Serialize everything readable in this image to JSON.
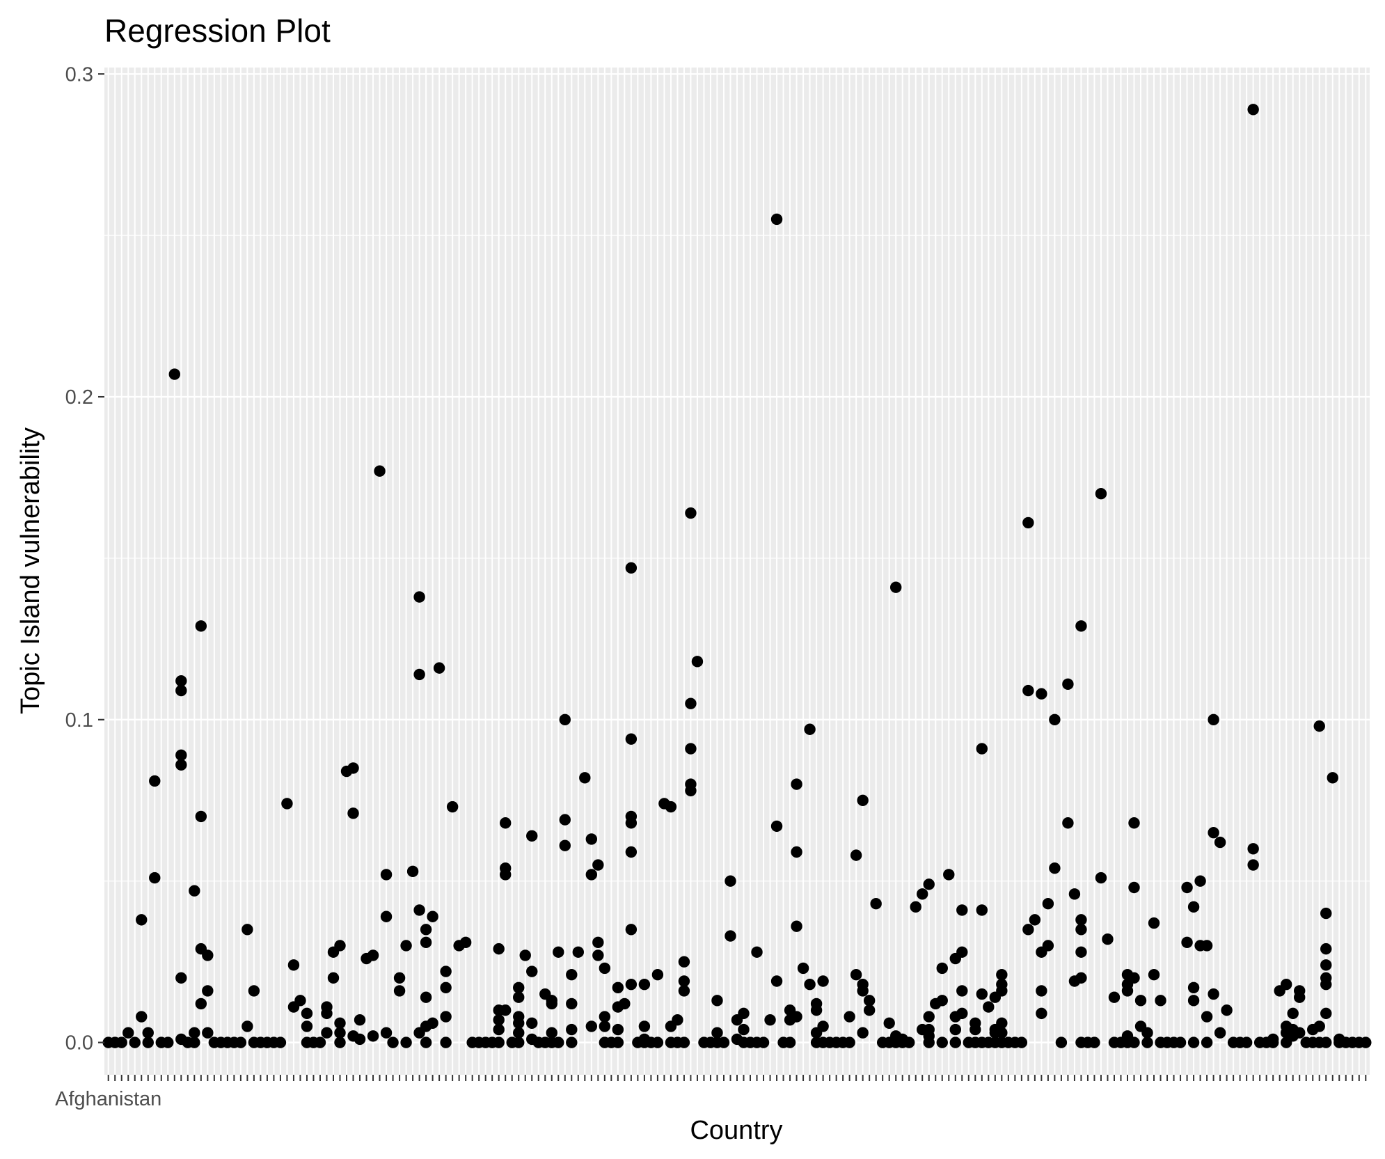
{
  "chart_data": {
    "type": "scatter",
    "title": "Regression Plot",
    "xlabel": "Country",
    "ylabel": "Topic Island vulnerability",
    "ylim": [
      -0.01,
      0.302
    ],
    "yticks": [
      0.0,
      0.1,
      0.2,
      0.3
    ],
    "ytick_labels": [
      "0.0",
      "0.1",
      "0.2",
      "0.3"
    ],
    "n_categories": 191,
    "x_tick_labels_visible": [
      "Afghanistan"
    ],
    "grid": true,
    "legend": "none",
    "point_color": "#000000",
    "panel_background": "#ebebeb",
    "points": [
      [
        1,
        0
      ],
      [
        2,
        0
      ],
      [
        3,
        0
      ],
      [
        4,
        0.003
      ],
      [
        5,
        0
      ],
      [
        6,
        0.038
      ],
      [
        6,
        0.008
      ],
      [
        7,
        0
      ],
      [
        7,
        0.003
      ],
      [
        8,
        0.081
      ],
      [
        8,
        0.051
      ],
      [
        9,
        0
      ],
      [
        10,
        0
      ],
      [
        11,
        0.207
      ],
      [
        12,
        0.112
      ],
      [
        12,
        0.109
      ],
      [
        12,
        0.089
      ],
      [
        12,
        0.086
      ],
      [
        12,
        0.02
      ],
      [
        12,
        0.001
      ],
      [
        13,
        0
      ],
      [
        14,
        0.047
      ],
      [
        14,
        0.003
      ],
      [
        14,
        0
      ],
      [
        15,
        0.129
      ],
      [
        15,
        0.07
      ],
      [
        15,
        0.029
      ],
      [
        15,
        0.012
      ],
      [
        16,
        0.027
      ],
      [
        16,
        0.016
      ],
      [
        16,
        0.003
      ],
      [
        17,
        0
      ],
      [
        18,
        0
      ],
      [
        19,
        0
      ],
      [
        20,
        0
      ],
      [
        21,
        0
      ],
      [
        22,
        0.035
      ],
      [
        22,
        0.005
      ],
      [
        23,
        0.016
      ],
      [
        23,
        0
      ],
      [
        24,
        0
      ],
      [
        25,
        0
      ],
      [
        26,
        0
      ],
      [
        27,
        0
      ],
      [
        28,
        0.074
      ],
      [
        29,
        0.024
      ],
      [
        29,
        0.011
      ],
      [
        30,
        0.013
      ],
      [
        31,
        0.009
      ],
      [
        31,
        0.005
      ],
      [
        31,
        0
      ],
      [
        32,
        0
      ],
      [
        33,
        0
      ],
      [
        34,
        0.011
      ],
      [
        34,
        0.009
      ],
      [
        34,
        0.003
      ],
      [
        35,
        0.028
      ],
      [
        35,
        0.02
      ],
      [
        36,
        0.03
      ],
      [
        36,
        0.006
      ],
      [
        36,
        0.003
      ],
      [
        36,
        0
      ],
      [
        37,
        0.084
      ],
      [
        38,
        0.085
      ],
      [
        38,
        0.071
      ],
      [
        38,
        0.002
      ],
      [
        39,
        0.007
      ],
      [
        39,
        0.001
      ],
      [
        40,
        0.026
      ],
      [
        41,
        0.027
      ],
      [
        41,
        0.002
      ],
      [
        42,
        0.177
      ],
      [
        43,
        0.052
      ],
      [
        43,
        0.039
      ],
      [
        43,
        0.003
      ],
      [
        44,
        0
      ],
      [
        45,
        0.02
      ],
      [
        45,
        0.016
      ],
      [
        46,
        0.03
      ],
      [
        46,
        0
      ],
      [
        47,
        0.053
      ],
      [
        48,
        0.138
      ],
      [
        48,
        0.114
      ],
      [
        48,
        0.041
      ],
      [
        48,
        0.003
      ],
      [
        49,
        0.035
      ],
      [
        49,
        0.031
      ],
      [
        49,
        0.014
      ],
      [
        49,
        0.005
      ],
      [
        49,
        0
      ],
      [
        50,
        0.039
      ],
      [
        50,
        0.006
      ],
      [
        51,
        0.116
      ],
      [
        52,
        0.022
      ],
      [
        52,
        0.017
      ],
      [
        52,
        0.008
      ],
      [
        52,
        0
      ],
      [
        53,
        0.073
      ],
      [
        54,
        0.03
      ],
      [
        55,
        0.031
      ],
      [
        56,
        0
      ],
      [
        57,
        0
      ],
      [
        58,
        0
      ],
      [
        59,
        0
      ],
      [
        60,
        0.029
      ],
      [
        60,
        0.01
      ],
      [
        60,
        0.007
      ],
      [
        60,
        0.004
      ],
      [
        60,
        0
      ],
      [
        61,
        0.068
      ],
      [
        61,
        0.054
      ],
      [
        61,
        0.052
      ],
      [
        61,
        0.01
      ],
      [
        62,
        0
      ],
      [
        63,
        0.017
      ],
      [
        63,
        0.014
      ],
      [
        63,
        0.008
      ],
      [
        63,
        0.006
      ],
      [
        63,
        0.003
      ],
      [
        63,
        0
      ],
      [
        64,
        0.027
      ],
      [
        65,
        0.064
      ],
      [
        65,
        0.022
      ],
      [
        65,
        0.006
      ],
      [
        65,
        0.001
      ],
      [
        66,
        0
      ],
      [
        67,
        0.015
      ],
      [
        67,
        0
      ],
      [
        68,
        0.013
      ],
      [
        68,
        0.012
      ],
      [
        68,
        0.003
      ],
      [
        68,
        0
      ],
      [
        69,
        0.028
      ],
      [
        69,
        0
      ],
      [
        70,
        0.1
      ],
      [
        70,
        0.069
      ],
      [
        70,
        0.061
      ],
      [
        71,
        0.021
      ],
      [
        71,
        0.012
      ],
      [
        71,
        0.004
      ],
      [
        71,
        0
      ],
      [
        72,
        0.028
      ],
      [
        73,
        0.082
      ],
      [
        74,
        0.063
      ],
      [
        74,
        0.052
      ],
      [
        74,
        0.005
      ],
      [
        75,
        0.055
      ],
      [
        75,
        0.031
      ],
      [
        75,
        0.027
      ],
      [
        76,
        0.023
      ],
      [
        76,
        0.008
      ],
      [
        76,
        0.005
      ],
      [
        76,
        0
      ],
      [
        77,
        0
      ],
      [
        78,
        0.017
      ],
      [
        78,
        0.011
      ],
      [
        78,
        0.004
      ],
      [
        78,
        0
      ],
      [
        79,
        0.012
      ],
      [
        80,
        0.147
      ],
      [
        80,
        0.094
      ],
      [
        80,
        0.07
      ],
      [
        80,
        0.068
      ],
      [
        80,
        0.059
      ],
      [
        80,
        0.035
      ],
      [
        80,
        0.018
      ],
      [
        81,
        0
      ],
      [
        82,
        0.018
      ],
      [
        82,
        0.005
      ],
      [
        82,
        0.001
      ],
      [
        82,
        0
      ],
      [
        83,
        0
      ],
      [
        84,
        0.021
      ],
      [
        84,
        0
      ],
      [
        85,
        0.074
      ],
      [
        86,
        0.073
      ],
      [
        86,
        0.005
      ],
      [
        86,
        0
      ],
      [
        87,
        0.007
      ],
      [
        87,
        0
      ],
      [
        88,
        0.025
      ],
      [
        88,
        0.019
      ],
      [
        88,
        0.016
      ],
      [
        88,
        0
      ],
      [
        89,
        0.164
      ],
      [
        89,
        0.105
      ],
      [
        89,
        0.091
      ],
      [
        89,
        0.08
      ],
      [
        89,
        0.078
      ],
      [
        90,
        0.118
      ],
      [
        91,
        0
      ],
      [
        92,
        0
      ],
      [
        93,
        0.013
      ],
      [
        93,
        0.003
      ],
      [
        93,
        0
      ],
      [
        94,
        0
      ],
      [
        95,
        0.05
      ],
      [
        95,
        0.033
      ],
      [
        96,
        0.007
      ],
      [
        96,
        0.001
      ],
      [
        97,
        0.009
      ],
      [
        97,
        0.004
      ],
      [
        97,
        0
      ],
      [
        98,
        0
      ],
      [
        99,
        0.028
      ],
      [
        99,
        0
      ],
      [
        100,
        0
      ],
      [
        101,
        0.007
      ],
      [
        102,
        0.255
      ],
      [
        102,
        0.067
      ],
      [
        102,
        0.019
      ],
      [
        103,
        0
      ],
      [
        104,
        0.01
      ],
      [
        104,
        0.007
      ],
      [
        104,
        0
      ],
      [
        105,
        0.08
      ],
      [
        105,
        0.059
      ],
      [
        105,
        0.036
      ],
      [
        105,
        0.008
      ],
      [
        106,
        0.023
      ],
      [
        107,
        0.097
      ],
      [
        107,
        0.018
      ],
      [
        108,
        0.012
      ],
      [
        108,
        0.01
      ],
      [
        108,
        0.003
      ],
      [
        108,
        0
      ],
      [
        109,
        0.019
      ],
      [
        109,
        0.005
      ],
      [
        109,
        0
      ],
      [
        110,
        0
      ],
      [
        111,
        0
      ],
      [
        112,
        0
      ],
      [
        113,
        0.008
      ],
      [
        113,
        0
      ],
      [
        114,
        0.058
      ],
      [
        114,
        0.021
      ],
      [
        115,
        0.075
      ],
      [
        115,
        0.018
      ],
      [
        115,
        0.016
      ],
      [
        115,
        0.003
      ],
      [
        116,
        0.013
      ],
      [
        116,
        0.01
      ],
      [
        117,
        0.043
      ],
      [
        118,
        0
      ],
      [
        119,
        0.006
      ],
      [
        119,
        0
      ],
      [
        120,
        0.141
      ],
      [
        120,
        0.002
      ],
      [
        120,
        0
      ],
      [
        121,
        0.001
      ],
      [
        121,
        0
      ],
      [
        122,
        0
      ],
      [
        123,
        0.042
      ],
      [
        124,
        0.004
      ],
      [
        124,
        0.046
      ],
      [
        125,
        0.049
      ],
      [
        125,
        0.008
      ],
      [
        125,
        0.004
      ],
      [
        125,
        0.002
      ],
      [
        125,
        0
      ],
      [
        126,
        0.012
      ],
      [
        127,
        0.023
      ],
      [
        127,
        0.013
      ],
      [
        127,
        0
      ],
      [
        128,
        0.052
      ],
      [
        129,
        0.026
      ],
      [
        129,
        0.008
      ],
      [
        129,
        0.004
      ],
      [
        129,
        0
      ],
      [
        130,
        0.041
      ],
      [
        130,
        0.028
      ],
      [
        130,
        0.016
      ],
      [
        130,
        0.009
      ],
      [
        131,
        0
      ],
      [
        132,
        0.006
      ],
      [
        132,
        0.004
      ],
      [
        132,
        0
      ],
      [
        133,
        0.091
      ],
      [
        133,
        0.041
      ],
      [
        133,
        0.015
      ],
      [
        133,
        0
      ],
      [
        134,
        0.011
      ],
      [
        134,
        0
      ],
      [
        135,
        0.014
      ],
      [
        135,
        0.004
      ],
      [
        135,
        0.003
      ],
      [
        135,
        0
      ],
      [
        136,
        0.021
      ],
      [
        136,
        0.018
      ],
      [
        136,
        0.016
      ],
      [
        136,
        0.006
      ],
      [
        136,
        0.003
      ],
      [
        136,
        0
      ],
      [
        137,
        0
      ],
      [
        138,
        0
      ],
      [
        139,
        0
      ],
      [
        140,
        0.161
      ],
      [
        140,
        0.109
      ],
      [
        140,
        0.035
      ],
      [
        141,
        0.038
      ],
      [
        142,
        0.108
      ],
      [
        142,
        0.028
      ],
      [
        142,
        0.016
      ],
      [
        142,
        0.009
      ],
      [
        143,
        0.043
      ],
      [
        143,
        0.03
      ],
      [
        144,
        0.1
      ],
      [
        144,
        0.054
      ],
      [
        145,
        0
      ],
      [
        146,
        0.111
      ],
      [
        146,
        0.068
      ],
      [
        147,
        0.046
      ],
      [
        147,
        0.019
      ],
      [
        148,
        0.129
      ],
      [
        148,
        0.038
      ],
      [
        148,
        0.035
      ],
      [
        148,
        0.028
      ],
      [
        148,
        0.02
      ],
      [
        148,
        0
      ],
      [
        149,
        0
      ],
      [
        150,
        0
      ],
      [
        151,
        0.17
      ],
      [
        151,
        0.051
      ],
      [
        152,
        0.032
      ],
      [
        153,
        0.014
      ],
      [
        153,
        0
      ],
      [
        154,
        0
      ],
      [
        155,
        0.021
      ],
      [
        155,
        0.018
      ],
      [
        155,
        0.016
      ],
      [
        155,
        0.002
      ],
      [
        155,
        0
      ],
      [
        156,
        0.068
      ],
      [
        156,
        0.048
      ],
      [
        156,
        0.02
      ],
      [
        156,
        0
      ],
      [
        157,
        0.013
      ],
      [
        157,
        0.005
      ],
      [
        158,
        0.003
      ],
      [
        158,
        0
      ],
      [
        159,
        0.037
      ],
      [
        159,
        0.021
      ],
      [
        160,
        0.013
      ],
      [
        160,
        0
      ],
      [
        161,
        0
      ],
      [
        162,
        0
      ],
      [
        163,
        0
      ],
      [
        164,
        0.048
      ],
      [
        164,
        0.031
      ],
      [
        165,
        0.042
      ],
      [
        165,
        0.017
      ],
      [
        165,
        0.013
      ],
      [
        165,
        0
      ],
      [
        166,
        0.05
      ],
      [
        166,
        0.03
      ],
      [
        167,
        0.03
      ],
      [
        167,
        0.008
      ],
      [
        167,
        0
      ],
      [
        168,
        0.1
      ],
      [
        168,
        0.065
      ],
      [
        168,
        0.015
      ],
      [
        169,
        0.062
      ],
      [
        169,
        0.003
      ],
      [
        170,
        0.01
      ],
      [
        171,
        0
      ],
      [
        172,
        0
      ],
      [
        173,
        0
      ],
      [
        174,
        0.289
      ],
      [
        174,
        0.06
      ],
      [
        174,
        0.055
      ],
      [
        175,
        0
      ],
      [
        176,
        0
      ],
      [
        177,
        0.001
      ],
      [
        177,
        0
      ],
      [
        178,
        0.016
      ],
      [
        179,
        0.018
      ],
      [
        179,
        0.005
      ],
      [
        179,
        0.003
      ],
      [
        179,
        0
      ],
      [
        180,
        0.009
      ],
      [
        180,
        0.004
      ],
      [
        180,
        0.002
      ],
      [
        181,
        0.016
      ],
      [
        181,
        0.014
      ],
      [
        181,
        0.003
      ],
      [
        182,
        0
      ],
      [
        183,
        0.004
      ],
      [
        183,
        0
      ],
      [
        184,
        0.098
      ],
      [
        184,
        0.005
      ],
      [
        184,
        0
      ],
      [
        185,
        0.04
      ],
      [
        185,
        0.029
      ],
      [
        185,
        0.024
      ],
      [
        185,
        0.02
      ],
      [
        185,
        0.018
      ],
      [
        185,
        0.009
      ],
      [
        185,
        0
      ],
      [
        186,
        0.082
      ],
      [
        187,
        0.001
      ],
      [
        187,
        0
      ],
      [
        188,
        0
      ],
      [
        189,
        0
      ],
      [
        190,
        0
      ],
      [
        191,
        0
      ]
    ]
  }
}
